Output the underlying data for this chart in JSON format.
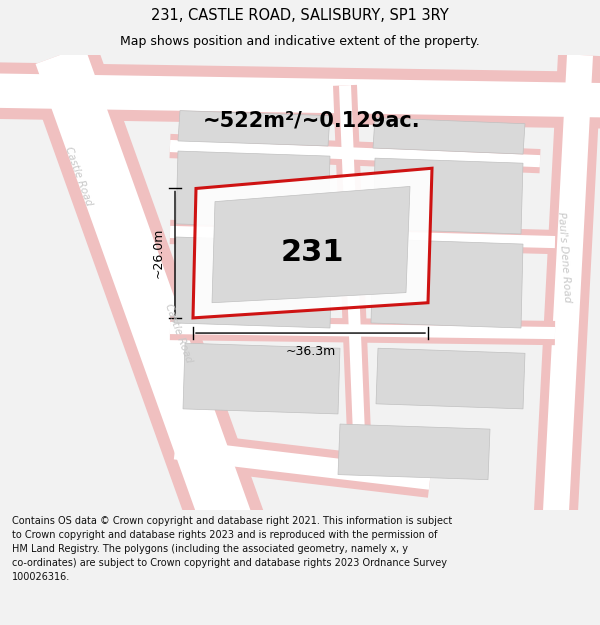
{
  "title_line1": "231, CASTLE ROAD, SALISBURY, SP1 3RY",
  "title_line2": "Map shows position and indicative extent of the property.",
  "area_label": "~522m²/~0.129ac.",
  "plot_number": "231",
  "width_label": "~36.3m",
  "height_label": "~26.0m",
  "road_label_left": "Castle Road",
  "road_label_diag": "Castle Road",
  "road_label_right": "Paul's Dene Road",
  "footer_text": "Contains OS data © Crown copyright and database right 2021. This information is subject to Crown copyright and database rights 2023 and is reproduced with the permission of HM Land Registry. The polygons (including the associated geometry, namely x, y co-ordinates) are subject to Crown copyright and database rights 2023 Ordnance Survey 100026316.",
  "bg_color": "#f2f2f2",
  "map_bg": "#ffffff",
  "road_stroke": "#f0c0c0",
  "road_fill": "#ffffff",
  "building_color": "#d9d9d9",
  "building_edge": "#c0c0c0",
  "plot_fill": "#ffffff",
  "plot_outline": "#cc0000",
  "dim_color": "#000000",
  "road_text_color": "#c8c8c8",
  "title1_fontsize": 10.5,
  "title2_fontsize": 9,
  "area_fontsize": 15,
  "plot_num_fontsize": 22,
  "dim_fontsize": 9,
  "road_fontsize": 7.5,
  "footer_fontsize": 7
}
